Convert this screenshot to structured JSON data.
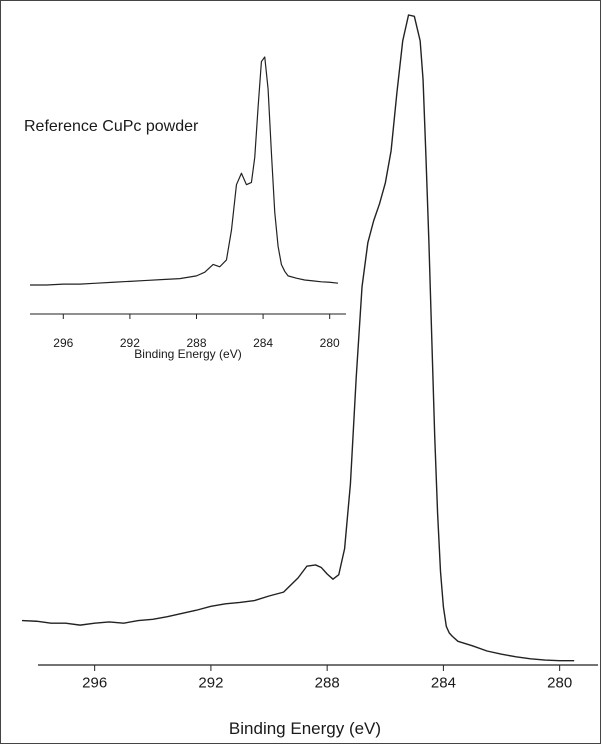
{
  "chart_data": [
    {
      "type": "line",
      "role": "main",
      "xlabel": "Binding Energy (eV)",
      "ylabel": "",
      "xlim": [
        298.5,
        279.3
      ],
      "reversed_x": true,
      "ylim": [
        0,
        1
      ],
      "grid": false,
      "xticks": [
        296,
        292,
        288,
        284,
        280
      ],
      "xtick_labels": [
        "296",
        "292",
        "288",
        "284",
        "280"
      ],
      "series": [
        {
          "name": "",
          "color": "#222222",
          "x": [
            298.5,
            298.0,
            297.5,
            297.0,
            296.5,
            296.0,
            295.5,
            295.0,
            294.5,
            294.0,
            293.5,
            293.0,
            292.5,
            292.0,
            291.5,
            291.0,
            290.5,
            290.0,
            289.5,
            289.0,
            288.7,
            288.4,
            288.2,
            288.0,
            287.8,
            287.6,
            287.4,
            287.2,
            287.0,
            286.8,
            286.6,
            286.4,
            286.2,
            286.0,
            285.8,
            285.6,
            285.4,
            285.2,
            285.0,
            284.8,
            284.7,
            284.6,
            284.5,
            284.4,
            284.3,
            284.2,
            284.1,
            284.0,
            283.9,
            283.8,
            283.7,
            283.5,
            283.0,
            282.5,
            282.0,
            281.5,
            281.0,
            280.5,
            280.0,
            279.5
          ],
          "y": [
            0.064,
            0.063,
            0.06,
            0.06,
            0.057,
            0.06,
            0.062,
            0.06,
            0.064,
            0.066,
            0.07,
            0.075,
            0.08,
            0.086,
            0.09,
            0.092,
            0.095,
            0.102,
            0.108,
            0.13,
            0.148,
            0.15,
            0.146,
            0.136,
            0.128,
            0.135,
            0.175,
            0.275,
            0.44,
            0.58,
            0.648,
            0.682,
            0.708,
            0.74,
            0.79,
            0.88,
            0.96,
            1.0,
            0.998,
            0.96,
            0.9,
            0.78,
            0.65,
            0.5,
            0.35,
            0.23,
            0.14,
            0.085,
            0.055,
            0.045,
            0.04,
            0.032,
            0.025,
            0.017,
            0.012,
            0.008,
            0.005,
            0.003,
            0.002,
            0.002
          ]
        }
      ]
    },
    {
      "type": "line",
      "role": "inset",
      "title": "Reference CuPc powder",
      "xlabel": "Binding Energy (eV)",
      "ylabel": "",
      "xlim": [
        298.0,
        279.2
      ],
      "reversed_x": true,
      "ylim": [
        0,
        1
      ],
      "grid": false,
      "xticks": [
        296,
        292,
        288,
        284,
        280
      ],
      "xtick_labels": [
        "296",
        "292",
        "288",
        "284",
        "280"
      ],
      "series": [
        {
          "name": "",
          "color": "#222222",
          "x": [
            298.0,
            297.0,
            296.0,
            295.0,
            294.0,
            293.0,
            292.0,
            291.0,
            290.0,
            289.0,
            288.0,
            287.5,
            287.0,
            286.6,
            286.2,
            285.9,
            285.6,
            285.3,
            285.0,
            284.7,
            284.5,
            284.3,
            284.1,
            283.9,
            283.7,
            283.5,
            283.3,
            283.1,
            282.9,
            282.7,
            282.5,
            282.0,
            281.5,
            281.0,
            280.5,
            280.0,
            279.5
          ],
          "y": [
            0.0,
            0.0,
            0.004,
            0.004,
            0.008,
            0.012,
            0.016,
            0.02,
            0.024,
            0.028,
            0.04,
            0.056,
            0.09,
            0.08,
            0.11,
            0.24,
            0.44,
            0.49,
            0.44,
            0.45,
            0.56,
            0.78,
            0.98,
            1.0,
            0.86,
            0.58,
            0.32,
            0.17,
            0.09,
            0.06,
            0.04,
            0.03,
            0.022,
            0.018,
            0.014,
            0.012,
            0.008
          ]
        }
      ]
    }
  ]
}
